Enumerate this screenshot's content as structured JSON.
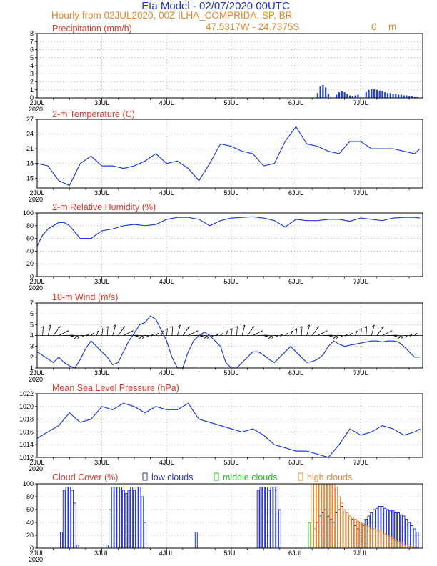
{
  "header": {
    "title": "Eta Model - 02/07/2020 00UTC",
    "subtitle": "Hourly from 02JUL2020, 00Z  ILHA_COMPRIDA, SP, BR",
    "coords": "47.5317W - 24.7375S",
    "elevation": "0",
    "elevation_unit": "m"
  },
  "x_axis": {
    "days": [
      "2JUL",
      "3JUL",
      "4JUL",
      "5JUL",
      "6JUL",
      "7JUL"
    ],
    "year": "2020"
  },
  "legend": {
    "low": "low clouds",
    "middle": "middle clouds",
    "high": "high clouds"
  },
  "colors": {
    "line": "#1f3fe0",
    "low": "#2333d6",
    "middle": "#17c417",
    "high": "#e8872e",
    "title": "#e03a2c"
  },
  "chart_data": [
    {
      "type": "bar",
      "title": "Precipitation (mm/h)",
      "ylim": [
        0,
        8
      ],
      "yticks": [
        "0",
        "1",
        "2",
        "3",
        "4",
        "5",
        "6",
        "7",
        "8"
      ],
      "x": [
        104,
        105,
        106,
        107,
        108,
        111,
        112,
        113,
        114,
        115,
        116,
        117,
        118,
        119,
        122,
        123,
        124,
        125,
        126,
        127,
        128,
        129,
        130,
        131,
        132,
        133,
        134,
        135,
        136,
        137,
        138,
        139,
        140,
        141
      ],
      "values": [
        0.6,
        1.4,
        1.6,
        1.3,
        0.5,
        0.4,
        0.7,
        0.8,
        0.7,
        0.5,
        0.3,
        0.2,
        0.3,
        0.4,
        0.7,
        1.0,
        1.1,
        1.1,
        1.0,
        0.9,
        0.8,
        0.7,
        0.6,
        0.6,
        0.5,
        0.5,
        0.4,
        0.4,
        0.3,
        0.3,
        0.2,
        0.2,
        0.1,
        0.1
      ]
    },
    {
      "type": "line",
      "title": "2-m Temperature (C)",
      "ylim": [
        13,
        27
      ],
      "yticks": [
        "15",
        "18",
        "21",
        "24",
        "27"
      ],
      "x": [
        0,
        4,
        8,
        12,
        16,
        20,
        24,
        28,
        32,
        36,
        40,
        44,
        48,
        52,
        56,
        60,
        64,
        68,
        72,
        76,
        80,
        84,
        88,
        92,
        96,
        100,
        104,
        108,
        112,
        116,
        120,
        124,
        128,
        132,
        136,
        140,
        142
      ],
      "values": [
        18.0,
        17.5,
        14.5,
        13.5,
        18.0,
        19.5,
        17.5,
        17.5,
        17.0,
        17.5,
        18.5,
        20.0,
        18.0,
        18.5,
        17.0,
        14.5,
        18.0,
        22.0,
        21.5,
        20.5,
        20.0,
        17.5,
        18.0,
        22.5,
        25.5,
        22.0,
        21.5,
        20.5,
        20.0,
        22.5,
        22.5,
        21.0,
        21.0,
        21.0,
        20.5,
        20.0,
        21.0
      ]
    },
    {
      "type": "line",
      "title": "2-m Relative Humidity (%)",
      "ylim": [
        0,
        100
      ],
      "yticks": [
        "0",
        "20",
        "40",
        "60",
        "80",
        "100"
      ],
      "x": [
        0,
        2,
        4,
        6,
        8,
        10,
        12,
        16,
        20,
        24,
        28,
        32,
        36,
        40,
        44,
        48,
        52,
        56,
        60,
        64,
        68,
        72,
        76,
        80,
        84,
        88,
        92,
        96,
        100,
        104,
        108,
        112,
        116,
        120,
        124,
        128,
        132,
        136,
        140,
        142
      ],
      "values": [
        48,
        65,
        75,
        80,
        85,
        85,
        80,
        60,
        60,
        72,
        75,
        80,
        82,
        80,
        82,
        90,
        93,
        93,
        90,
        80,
        88,
        92,
        93,
        94,
        92,
        88,
        78,
        90,
        88,
        88,
        90,
        90,
        87,
        92,
        90,
        88,
        92,
        93,
        93,
        92
      ]
    },
    {
      "type": "line",
      "title": "10-m Wind (m/s)",
      "ylim": [
        1,
        7
      ],
      "yticks": [
        "1",
        "2",
        "3",
        "4",
        "5",
        "6",
        "7"
      ],
      "x": [
        0,
        3,
        6,
        8,
        10,
        12,
        14,
        16,
        18,
        20,
        22,
        24,
        26,
        28,
        30,
        32,
        34,
        36,
        38,
        40,
        42,
        44,
        46,
        48,
        50,
        52,
        54,
        56,
        58,
        60,
        62,
        64,
        66,
        68,
        70,
        72,
        74,
        76,
        78,
        80,
        82,
        84,
        86,
        88,
        90,
        92,
        94,
        96,
        98,
        100,
        102,
        104,
        106,
        108,
        110,
        112,
        114,
        116,
        118,
        120,
        122,
        124,
        126,
        128,
        130,
        132,
        134,
        136,
        138,
        140,
        142
      ],
      "values": [
        2.5,
        2.0,
        1.5,
        2.0,
        1.5,
        1.2,
        1.0,
        1.8,
        2.8,
        3.5,
        3.0,
        2.5,
        2.0,
        1.3,
        1.5,
        2.5,
        3.5,
        4.2,
        5.0,
        5.2,
        5.8,
        5.5,
        4.5,
        3.5,
        2.0,
        1.0,
        1.0,
        2.5,
        3.5,
        4.0,
        4.3,
        4.0,
        3.5,
        3.0,
        1.5,
        1.0,
        1.0,
        1.5,
        2.0,
        2.5,
        2.5,
        2.2,
        1.8,
        1.5,
        2.0,
        2.5,
        3.0,
        2.5,
        2.0,
        1.5,
        1.6,
        1.8,
        2.2,
        3.0,
        3.5,
        3.2,
        3.0,
        3.1,
        3.2,
        3.3,
        3.4,
        3.5,
        3.5,
        3.4,
        3.5,
        3.5,
        3.4,
        3.0,
        2.5,
        2.0,
        2.0
      ]
    },
    {
      "type": "line",
      "title": "Mean Sea Level Pressure (hPa)",
      "ylim": [
        1012,
        1022
      ],
      "yticks": [
        "1012",
        "1014",
        "1016",
        "1018",
        "1020",
        "1022"
      ],
      "x": [
        0,
        4,
        8,
        12,
        16,
        20,
        24,
        28,
        32,
        36,
        40,
        44,
        48,
        52,
        56,
        60,
        64,
        68,
        72,
        76,
        80,
        84,
        88,
        92,
        96,
        100,
        104,
        108,
        112,
        116,
        120,
        124,
        128,
        132,
        136,
        140,
        142
      ],
      "values": [
        1015.0,
        1016.0,
        1017.0,
        1019.0,
        1017.5,
        1018.0,
        1020.0,
        1019.5,
        1020.5,
        1020.0,
        1019.0,
        1020.0,
        1019.5,
        1019.5,
        1020.5,
        1018.0,
        1017.5,
        1017.0,
        1016.5,
        1016.0,
        1016.5,
        1015.5,
        1014.0,
        1013.5,
        1013.0,
        1013.0,
        1012.5,
        1012.0,
        1014.0,
        1016.5,
        1015.5,
        1016.0,
        1017.0,
        1016.5,
        1015.5,
        1016.0,
        1016.5
      ]
    },
    {
      "type": "bar",
      "title": "Cloud Cover (%)",
      "ylim": [
        0,
        100
      ],
      "yticks": [
        "0",
        "20",
        "40",
        "60",
        "80",
        "100"
      ],
      "series": [
        {
          "name": "low clouds",
          "x": [
            9,
            10,
            11,
            12,
            13,
            14,
            15,
            26,
            27,
            28,
            29,
            30,
            31,
            32,
            33,
            34,
            35,
            36,
            37,
            38,
            39,
            40,
            59,
            82,
            83,
            84,
            85,
            86,
            87,
            88,
            89,
            90,
            104,
            105,
            106,
            107,
            108,
            109,
            110,
            111,
            112,
            113,
            114,
            115,
            116,
            117,
            118,
            119,
            120,
            121,
            122,
            123,
            124,
            125,
            126,
            127,
            128,
            129,
            130,
            131,
            132,
            133,
            134,
            135,
            136,
            137,
            138,
            139,
            140,
            141
          ],
          "values": [
            25,
            90,
            95,
            95,
            90,
            70,
            5,
            5,
            60,
            95,
            95,
            95,
            95,
            90,
            85,
            90,
            95,
            90,
            95,
            95,
            80,
            40,
            25,
            90,
            95,
            95,
            95,
            90,
            95,
            95,
            95,
            60,
            40,
            50,
            55,
            60,
            50,
            45,
            40,
            55,
            60,
            65,
            60,
            55,
            50,
            45,
            35,
            30,
            40,
            35,
            45,
            50,
            55,
            60,
            62,
            65,
            65,
            62,
            60,
            58,
            58,
            55,
            55,
            52,
            50,
            45,
            40,
            35,
            30,
            25
          ]
        },
        {
          "name": "middle clouds",
          "x": [
            101,
            103
          ],
          "values": [
            40,
            30
          ]
        },
        {
          "name": "high clouds",
          "x": [
            102,
            103,
            104,
            105,
            106,
            107,
            108,
            109,
            110,
            111,
            112,
            113,
            114,
            115,
            116,
            117,
            118,
            119,
            120,
            121,
            122,
            123,
            124,
            125,
            126,
            127,
            128,
            129,
            130,
            131,
            132,
            133,
            134,
            135,
            136,
            137,
            138,
            139,
            140,
            141
          ],
          "values": [
            100,
            100,
            100,
            100,
            100,
            100,
            100,
            100,
            100,
            95,
            80,
            70,
            60,
            55,
            50,
            48,
            45,
            42,
            40,
            38,
            35,
            33,
            30,
            30,
            28,
            27,
            25,
            22,
            20,
            18,
            15,
            12,
            10,
            8,
            5,
            5,
            3,
            2,
            1,
            1
          ]
        }
      ]
    }
  ]
}
